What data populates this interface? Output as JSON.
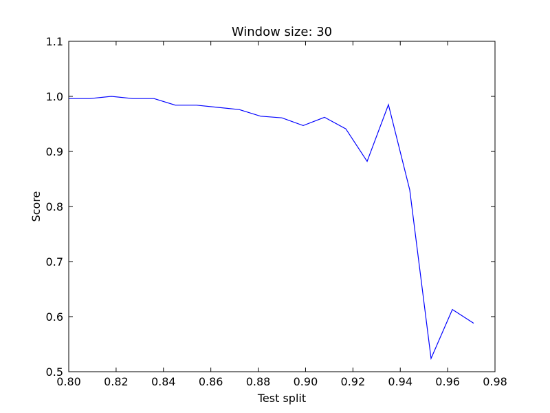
{
  "chart_data": {
    "type": "line",
    "title": "Window size: 30",
    "xlabel": "Test split",
    "ylabel": "Score",
    "xlim": [
      0.8,
      0.98
    ],
    "ylim": [
      0.5,
      1.1
    ],
    "xticks": [
      "0.80",
      "0.82",
      "0.84",
      "0.86",
      "0.88",
      "0.90",
      "0.92",
      "0.94",
      "0.96",
      "0.98"
    ],
    "yticks": [
      "0.5",
      "0.6",
      "0.7",
      "0.8",
      "0.9",
      "1.0",
      "1.1"
    ],
    "grid": false,
    "series": [
      {
        "color": "#0000ff",
        "x": [
          0.8,
          0.809,
          0.818,
          0.827,
          0.836,
          0.845,
          0.854,
          0.863,
          0.872,
          0.881,
          0.89,
          0.899,
          0.908,
          0.917,
          0.926,
          0.935,
          0.944,
          0.953,
          0.962,
          0.971
        ],
        "y": [
          0.996,
          0.996,
          1.0,
          0.996,
          0.996,
          0.984,
          0.984,
          0.98,
          0.976,
          0.964,
          0.961,
          0.947,
          0.962,
          0.941,
          0.882,
          0.985,
          0.83,
          0.524,
          0.613,
          0.588
        ]
      }
    ]
  }
}
